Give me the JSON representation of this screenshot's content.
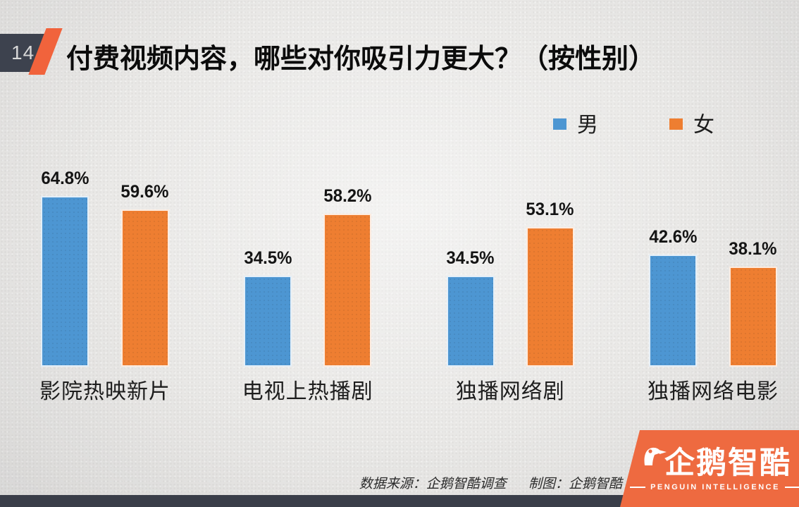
{
  "slide": {
    "page_number": "14",
    "title": "付费视频内容，哪些对你吸引力更大？（按性别）"
  },
  "chart_data": {
    "type": "bar",
    "title": "付费视频内容，哪些对你吸引力更大？（按性别）",
    "categories": [
      "影院热映新片",
      "电视上热播剧",
      "独播网络剧",
      "独播网络电影"
    ],
    "series": [
      {
        "name": "男",
        "color": "#4d96d2",
        "values": [
          64.8,
          34.5,
          34.5,
          42.6
        ]
      },
      {
        "name": "女",
        "color": "#ee7e31",
        "values": [
          59.6,
          58.2,
          53.1,
          38.1
        ]
      }
    ],
    "value_suffix": "%",
    "value_labels": true,
    "ylim": [
      0,
      70
    ],
    "grid": false,
    "legend_position": "top-right"
  },
  "footer": {
    "source": "数据来源：企鹅智酷调查",
    "credit": "制图：企鹅智酷",
    "logo_cn": "企鹅智酷",
    "logo_en": "PENGUIN INTELLIGENCE"
  },
  "colors": {
    "male_blue": "#4d96d2",
    "female_orange": "#ee7e31",
    "accent_orange": "#f1633c",
    "dark_slate": "#3d424e",
    "bottom_bar": "#3a3e49",
    "logo_orange": "#ee6a40",
    "background": "#e9e8e6"
  }
}
